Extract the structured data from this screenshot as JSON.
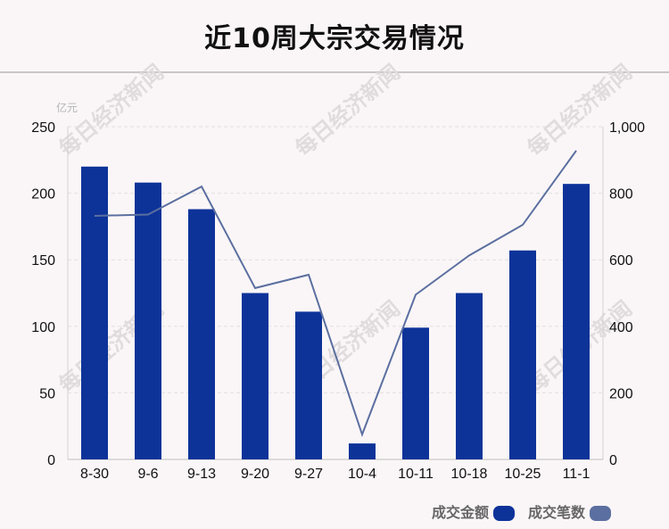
{
  "title": "近10周大宗交易情况",
  "watermark": "每日经济新闻",
  "chart_data": {
    "type": "bar",
    "categories": [
      "8-30",
      "9-6",
      "9-13",
      "9-20",
      "9-27",
      "10-4",
      "10-11",
      "10-18",
      "10-25",
      "11-1"
    ],
    "series": [
      {
        "name": "成交金额",
        "type": "bar",
        "axis": "left",
        "color": "#0d3399",
        "values": [
          220,
          208,
          188,
          125,
          111,
          12,
          99,
          125,
          157,
          207
        ]
      },
      {
        "name": "成交笔数",
        "type": "line",
        "axis": "right",
        "color": "#5b6fa0",
        "values": [
          732,
          736,
          820,
          515,
          555,
          75,
          495,
          613,
          705,
          928
        ]
      }
    ],
    "y_left": {
      "unit": "亿元",
      "ylim": [
        0,
        250
      ],
      "ticks": [
        0,
        50,
        100,
        150,
        200,
        250
      ]
    },
    "y_right": {
      "ylim": [
        0,
        1000
      ],
      "ticks": [
        "0",
        "200",
        "400",
        "600",
        "800",
        "1,000"
      ]
    },
    "grid": true,
    "legend_position": "bottom-right"
  }
}
